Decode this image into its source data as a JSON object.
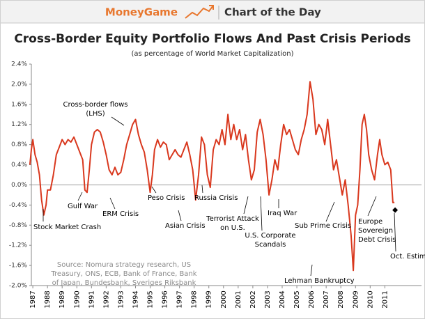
{
  "header": {
    "brand": "MoneyGame",
    "section": "Chart of the Day"
  },
  "chart_data": {
    "type": "line",
    "title": "Cross-Border Equity Portfolio Flows And Past Crisis Periods",
    "subtitle": "(as percentage of World Market Capitalization)",
    "x": [
      1986.8,
      1986.9,
      1987.0,
      1987.15,
      1987.3,
      1987.45,
      1987.6,
      1987.75,
      1987.9,
      1988.0,
      1988.2,
      1988.4,
      1988.6,
      1988.8,
      1989.0,
      1989.2,
      1989.4,
      1989.6,
      1989.8,
      1990.0,
      1990.2,
      1990.4,
      1990.55,
      1990.7,
      1990.85,
      1991.0,
      1991.2,
      1991.4,
      1991.6,
      1991.8,
      1992.0,
      1992.2,
      1992.4,
      1992.6,
      1992.8,
      1993.0,
      1993.2,
      1993.4,
      1993.6,
      1993.8,
      1994.0,
      1994.2,
      1994.4,
      1994.6,
      1994.8,
      1995.0,
      1995.15,
      1995.3,
      1995.5,
      1995.7,
      1995.9,
      1996.1,
      1996.3,
      1996.5,
      1996.7,
      1996.9,
      1997.1,
      1997.3,
      1997.5,
      1997.7,
      1997.9,
      1998.1,
      1998.3,
      1998.5,
      1998.7,
      1998.9,
      1999.1,
      1999.3,
      1999.5,
      1999.7,
      1999.9,
      2000.1,
      2000.3,
      2000.5,
      2000.7,
      2000.9,
      2001.1,
      2001.3,
      2001.5,
      2001.7,
      2001.9,
      2002.1,
      2002.3,
      2002.5,
      2002.7,
      2002.9,
      2003.1,
      2003.3,
      2003.5,
      2003.7,
      2003.9,
      2004.1,
      2004.3,
      2004.5,
      2004.7,
      2004.9,
      2005.1,
      2005.3,
      2005.5,
      2005.7,
      2005.9,
      2006.1,
      2006.3,
      2006.5,
      2006.7,
      2006.9,
      2007.1,
      2007.3,
      2007.5,
      2007.7,
      2007.9,
      2008.1,
      2008.3,
      2008.5,
      2008.7,
      2008.85,
      2009.0,
      2009.15,
      2009.3,
      2009.45,
      2009.6,
      2009.75,
      2009.9,
      2010.1,
      2010.3,
      2010.5,
      2010.65,
      2010.8,
      2011.0,
      2011.2,
      2011.4,
      2011.55,
      2011.65
    ],
    "values": [
      0.4,
      0.7,
      0.9,
      0.6,
      0.45,
      0.2,
      -0.3,
      -0.6,
      -0.4,
      -0.1,
      -0.1,
      0.2,
      0.6,
      0.75,
      0.9,
      0.8,
      0.9,
      0.85,
      0.95,
      0.8,
      0.65,
      0.5,
      -0.1,
      -0.15,
      0.3,
      0.8,
      1.05,
      1.1,
      1.05,
      0.85,
      0.6,
      0.3,
      0.2,
      0.35,
      0.2,
      0.25,
      0.5,
      0.8,
      1.0,
      1.2,
      1.3,
      1.0,
      0.8,
      0.65,
      0.3,
      -0.15,
      0.2,
      0.7,
      0.9,
      0.75,
      0.85,
      0.8,
      0.5,
      0.6,
      0.7,
      0.6,
      0.55,
      0.7,
      0.85,
      0.6,
      0.3,
      -0.3,
      0.2,
      0.95,
      0.8,
      0.2,
      -0.05,
      0.7,
      0.9,
      0.8,
      1.1,
      0.8,
      1.4,
      0.9,
      1.2,
      0.9,
      1.1,
      0.7,
      1.0,
      0.5,
      0.1,
      0.3,
      1.05,
      1.3,
      1.0,
      0.5,
      -0.2,
      0.1,
      0.5,
      0.3,
      0.8,
      1.2,
      1.0,
      1.1,
      0.9,
      0.7,
      0.6,
      0.9,
      1.1,
      1.4,
      2.05,
      1.7,
      1.0,
      1.2,
      1.1,
      0.8,
      1.3,
      0.8,
      0.3,
      0.5,
      0.15,
      -0.2,
      0.1,
      -0.4,
      -1.0,
      -1.7,
      -0.6,
      -0.4,
      0.3,
      1.2,
      1.4,
      1.1,
      0.6,
      0.3,
      0.1,
      0.6,
      0.9,
      0.6,
      0.4,
      0.45,
      0.3,
      -0.35,
      -0.35
    ],
    "color": "#d9381e",
    "estimate": {
      "x": 2011.7,
      "value": -0.5
    },
    "xlim": [
      1986.9,
      2013.5
    ],
    "xticks": [
      1987,
      1988,
      1989,
      1990,
      1991,
      1992,
      1993,
      1994,
      1995,
      1996,
      1997,
      1998,
      1999,
      2000,
      2001,
      2002,
      2003,
      2004,
      2005,
      2006,
      2007,
      2008,
      2009,
      2010,
      2011
    ],
    "ylim": [
      -2.0,
      2.4
    ],
    "yticks": [
      {
        "value": -2.0,
        "label": "-2.0%"
      },
      {
        "value": -1.6,
        "label": "-1.6%"
      },
      {
        "value": -1.2,
        "label": "-1.2%"
      },
      {
        "value": -0.8,
        "label": "-0.8%"
      },
      {
        "value": -0.4,
        "label": "-0.4%"
      },
      {
        "value": 0.0,
        "label": "0.0%"
      },
      {
        "value": 0.4,
        "label": "0.4%"
      },
      {
        "value": 0.8,
        "label": "0.8%"
      },
      {
        "value": 1.2,
        "label": "1.2%"
      },
      {
        "value": 1.6,
        "label": "1.6%"
      },
      {
        "value": 2.0,
        "label": "2.0%"
      },
      {
        "value": 2.4,
        "label": "2.4%"
      }
    ],
    "annotations": [
      "Cross-border flows",
      "(LHS)",
      "Stock Market Crash",
      "Gulf War",
      "ERM Crisis",
      "Peso Crisis",
      "Asian Crisis",
      "Russia Crisis",
      "Terrorist Attack",
      "on U.S.",
      "U.S. Corporate",
      "Scandals",
      "Iraq War",
      "Sub Prime Crisis",
      "Europe",
      "Sovereign",
      "Debt Crisis",
      "Lehman Bankruptcy",
      "Oct. Estimate"
    ],
    "source": [
      "Source: Nomura strategy research, US",
      "Treasury, ONS, ECB, Bank of France, Bank",
      "of Japan, Bundesbank, Sveriges Riksbank"
    ]
  }
}
